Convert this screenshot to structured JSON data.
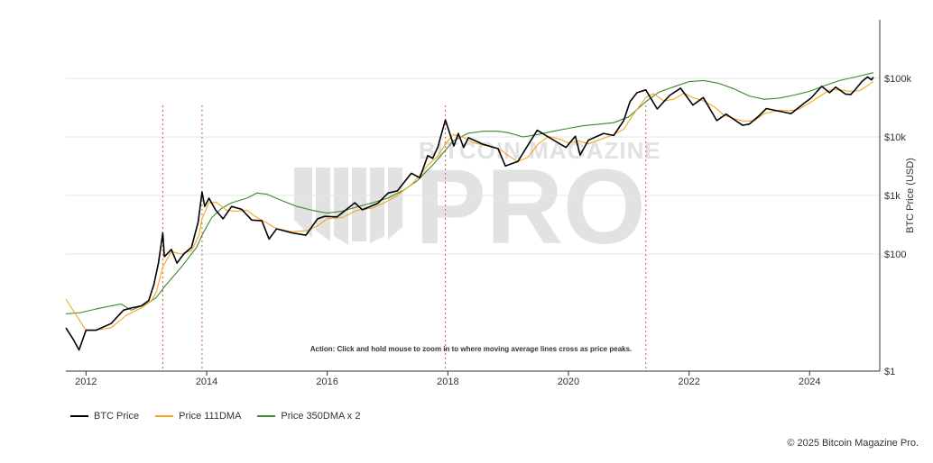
{
  "chart_data": {
    "type": "line",
    "xlabel": "",
    "ylabel": "BTC Price (USD)",
    "y_scale": "log",
    "x_range": [
      "2011-09-01",
      "2025-03-01"
    ],
    "ylim": [
      1,
      1000000
    ],
    "x_ticks": [
      "2012",
      "2014",
      "2016",
      "2018",
      "2020",
      "2022",
      "2024"
    ],
    "y_ticks": [
      {
        "value": 1,
        "label": "$1"
      },
      {
        "value": 100,
        "label": "$100"
      },
      {
        "value": 1000,
        "label": "$1k"
      },
      {
        "value": 10000,
        "label": "$10k"
      },
      {
        "value": 100000,
        "label": "$100k"
      }
    ],
    "grid": true,
    "annotation": "Action: Click and hold mouse to zoom in to where moving average lines cross as price peaks.",
    "peak_markers": [
      "2013-04-10",
      "2013-12-04",
      "2017-12-17",
      "2021-04-14"
    ],
    "series": [
      {
        "name": "BTC Price",
        "color": "#000000",
        "points": [
          [
            "2011-09-01",
            5.5
          ],
          [
            "2011-10-15",
            3.5
          ],
          [
            "2011-11-20",
            2.3
          ],
          [
            "2012-01-01",
            5.0
          ],
          [
            "2012-03-01",
            5.0
          ],
          [
            "2012-06-01",
            6.5
          ],
          [
            "2012-08-15",
            11
          ],
          [
            "2012-10-01",
            12
          ],
          [
            "2012-12-01",
            13
          ],
          [
            "2013-01-15",
            16
          ],
          [
            "2013-02-15",
            30
          ],
          [
            "2013-03-15",
            70
          ],
          [
            "2013-04-10",
            230
          ],
          [
            "2013-04-20",
            90
          ],
          [
            "2013-06-01",
            120
          ],
          [
            "2013-07-05",
            70
          ],
          [
            "2013-08-15",
            100
          ],
          [
            "2013-10-01",
            130
          ],
          [
            "2013-11-10",
            350
          ],
          [
            "2013-12-04",
            1150
          ],
          [
            "2013-12-20",
            650
          ],
          [
            "2014-01-15",
            900
          ],
          [
            "2014-02-25",
            560
          ],
          [
            "2014-04-10",
            400
          ],
          [
            "2014-06-01",
            650
          ],
          [
            "2014-08-01",
            580
          ],
          [
            "2014-10-01",
            380
          ],
          [
            "2014-12-01",
            370
          ],
          [
            "2015-01-14",
            180
          ],
          [
            "2015-03-01",
            270
          ],
          [
            "2015-06-01",
            230
          ],
          [
            "2015-08-25",
            210
          ],
          [
            "2015-11-04",
            400
          ],
          [
            "2015-12-15",
            440
          ],
          [
            "2016-03-01",
            430
          ],
          [
            "2016-06-16",
            750
          ],
          [
            "2016-08-01",
            570
          ],
          [
            "2016-11-01",
            730
          ],
          [
            "2017-01-04",
            1100
          ],
          [
            "2017-03-01",
            1200
          ],
          [
            "2017-05-25",
            2400
          ],
          [
            "2017-07-15",
            2000
          ],
          [
            "2017-09-01",
            4800
          ],
          [
            "2017-10-01",
            4300
          ],
          [
            "2017-11-01",
            6700
          ],
          [
            "2017-12-17",
            19500
          ],
          [
            "2018-02-06",
            7000
          ],
          [
            "2018-03-05",
            11500
          ],
          [
            "2018-04-06",
            6600
          ],
          [
            "2018-05-05",
            9700
          ],
          [
            "2018-08-01",
            7500
          ],
          [
            "2018-11-01",
            6300
          ],
          [
            "2018-12-15",
            3200
          ],
          [
            "2019-03-01",
            3800
          ],
          [
            "2019-06-26",
            13000
          ],
          [
            "2019-09-01",
            10000
          ],
          [
            "2019-12-17",
            6600
          ],
          [
            "2020-02-12",
            10300
          ],
          [
            "2020-03-12",
            4900
          ],
          [
            "2020-05-01",
            8800
          ],
          [
            "2020-08-01",
            11500
          ],
          [
            "2020-10-01",
            10600
          ],
          [
            "2020-12-01",
            19000
          ],
          [
            "2021-01-08",
            40000
          ],
          [
            "2021-02-20",
            57000
          ],
          [
            "2021-04-14",
            63500
          ],
          [
            "2021-06-22",
            30000
          ],
          [
            "2021-08-01",
            40000
          ],
          [
            "2021-09-05",
            51000
          ],
          [
            "2021-11-10",
            68000
          ],
          [
            "2022-01-24",
            35000
          ],
          [
            "2022-03-28",
            47000
          ],
          [
            "2022-06-18",
            19000
          ],
          [
            "2022-08-13",
            24500
          ],
          [
            "2022-11-21",
            15800
          ],
          [
            "2023-01-01",
            16600
          ],
          [
            "2023-03-01",
            23000
          ],
          [
            "2023-04-14",
            30500
          ],
          [
            "2023-09-11",
            25000
          ],
          [
            "2023-12-01",
            38000
          ],
          [
            "2024-01-11",
            46500
          ],
          [
            "2024-03-14",
            73000
          ],
          [
            "2024-05-01",
            57000
          ],
          [
            "2024-06-07",
            71000
          ],
          [
            "2024-08-05",
            54000
          ],
          [
            "2024-09-06",
            53000
          ],
          [
            "2024-10-01",
            63000
          ],
          [
            "2024-11-12",
            88000
          ],
          [
            "2024-12-17",
            106000
          ],
          [
            "2025-01-10",
            94000
          ],
          [
            "2025-01-21",
            105000
          ]
        ]
      },
      {
        "name": "Price 111DMA",
        "color": "#f5a623",
        "points": [
          [
            "2011-09-01",
            17
          ],
          [
            "2011-11-15",
            8
          ],
          [
            "2012-01-01",
            5
          ],
          [
            "2012-03-01",
            5.0
          ],
          [
            "2012-06-01",
            5.5
          ],
          [
            "2012-09-01",
            9
          ],
          [
            "2012-12-01",
            12
          ],
          [
            "2013-02-01",
            16
          ],
          [
            "2013-03-01",
            22
          ],
          [
            "2013-04-10",
            60
          ],
          [
            "2013-06-01",
            110
          ],
          [
            "2013-08-01",
            100
          ],
          [
            "2013-10-01",
            115
          ],
          [
            "2013-11-15",
            210
          ],
          [
            "2013-12-04",
            400
          ],
          [
            "2014-01-15",
            750
          ],
          [
            "2014-03-01",
            760
          ],
          [
            "2014-05-01",
            560
          ],
          [
            "2014-07-01",
            540
          ],
          [
            "2014-09-01",
            560
          ],
          [
            "2014-11-01",
            420
          ],
          [
            "2015-01-01",
            340
          ],
          [
            "2015-03-01",
            270
          ],
          [
            "2015-06-01",
            240
          ],
          [
            "2015-09-01",
            250
          ],
          [
            "2015-11-01",
            300
          ],
          [
            "2016-01-01",
            400
          ],
          [
            "2016-04-01",
            420
          ],
          [
            "2016-07-01",
            560
          ],
          [
            "2016-10-01",
            610
          ],
          [
            "2017-01-01",
            800
          ],
          [
            "2017-03-01",
            1000
          ],
          [
            "2017-06-01",
            1600
          ],
          [
            "2017-09-01",
            3300
          ],
          [
            "2017-11-01",
            4700
          ],
          [
            "2017-12-17",
            7500
          ],
          [
            "2018-02-01",
            11000
          ],
          [
            "2018-04-01",
            10000
          ],
          [
            "2018-06-01",
            8000
          ],
          [
            "2018-09-01",
            7000
          ],
          [
            "2018-11-15",
            6100
          ],
          [
            "2019-01-01",
            4800
          ],
          [
            "2019-03-01",
            3800
          ],
          [
            "2019-05-01",
            4500
          ],
          [
            "2019-07-01",
            7500
          ],
          [
            "2019-09-01",
            10200
          ],
          [
            "2019-11-01",
            9300
          ],
          [
            "2020-01-01",
            7900
          ],
          [
            "2020-03-01",
            8600
          ],
          [
            "2020-05-01",
            7600
          ],
          [
            "2020-07-01",
            8800
          ],
          [
            "2020-10-01",
            11000
          ],
          [
            "2020-12-01",
            13500
          ],
          [
            "2021-02-01",
            25000
          ],
          [
            "2021-04-14",
            47000
          ],
          [
            "2021-06-01",
            55000
          ],
          [
            "2021-08-01",
            41000
          ],
          [
            "2021-10-01",
            44000
          ],
          [
            "2021-12-01",
            56000
          ],
          [
            "2022-02-01",
            46000
          ],
          [
            "2022-04-01",
            41000
          ],
          [
            "2022-06-01",
            33000
          ],
          [
            "2022-08-01",
            23500
          ],
          [
            "2022-10-01",
            20500
          ],
          [
            "2022-12-01",
            18500
          ],
          [
            "2023-02-01",
            19000
          ],
          [
            "2023-04-01",
            25000
          ],
          [
            "2023-07-01",
            28500
          ],
          [
            "2023-09-01",
            28000
          ],
          [
            "2023-11-01",
            30000
          ],
          [
            "2024-01-01",
            38000
          ],
          [
            "2024-03-14",
            52000
          ],
          [
            "2024-05-01",
            63000
          ],
          [
            "2024-07-01",
            64000
          ],
          [
            "2024-09-01",
            60000
          ],
          [
            "2024-11-01",
            62000
          ],
          [
            "2024-12-17",
            75000
          ],
          [
            "2025-01-21",
            88000
          ]
        ]
      },
      {
        "name": "Price 350DMA x 2",
        "color": "#3a8a2a",
        "points": [
          [
            "2011-09-01",
            9.5
          ],
          [
            "2011-12-01",
            10
          ],
          [
            "2012-03-01",
            11.5
          ],
          [
            "2012-06-01",
            13
          ],
          [
            "2012-08-01",
            14
          ],
          [
            "2012-10-01",
            11
          ],
          [
            "2013-01-01",
            14
          ],
          [
            "2013-03-01",
            18
          ],
          [
            "2013-05-01",
            30
          ],
          [
            "2013-08-01",
            60
          ],
          [
            "2013-11-01",
            130
          ],
          [
            "2013-12-04",
            210
          ],
          [
            "2014-02-01",
            420
          ],
          [
            "2014-04-01",
            600
          ],
          [
            "2014-06-01",
            750
          ],
          [
            "2014-09-01",
            900
          ],
          [
            "2014-11-01",
            1100
          ],
          [
            "2015-01-01",
            1050
          ],
          [
            "2015-04-01",
            820
          ],
          [
            "2015-07-01",
            650
          ],
          [
            "2015-10-01",
            560
          ],
          [
            "2016-01-01",
            500
          ],
          [
            "2016-04-01",
            540
          ],
          [
            "2016-07-01",
            640
          ],
          [
            "2016-10-01",
            750
          ],
          [
            "2017-01-01",
            900
          ],
          [
            "2017-04-01",
            1200
          ],
          [
            "2017-07-01",
            1800
          ],
          [
            "2017-10-01",
            3300
          ],
          [
            "2017-12-17",
            5900
          ],
          [
            "2018-02-01",
            8500
          ],
          [
            "2018-05-01",
            11500
          ],
          [
            "2018-08-01",
            12500
          ],
          [
            "2018-11-01",
            12500
          ],
          [
            "2019-01-01",
            11800
          ],
          [
            "2019-04-01",
            10000
          ],
          [
            "2019-07-01",
            11000
          ],
          [
            "2019-10-01",
            12500
          ],
          [
            "2020-01-01",
            14000
          ],
          [
            "2020-04-01",
            15500
          ],
          [
            "2020-07-01",
            16500
          ],
          [
            "2020-10-01",
            17500
          ],
          [
            "2021-01-01",
            22000
          ],
          [
            "2021-04-14",
            40000
          ],
          [
            "2021-07-01",
            58000
          ],
          [
            "2021-10-01",
            72000
          ],
          [
            "2022-01-01",
            88000
          ],
          [
            "2022-04-01",
            92000
          ],
          [
            "2022-07-01",
            82000
          ],
          [
            "2022-10-01",
            66000
          ],
          [
            "2023-01-01",
            50000
          ],
          [
            "2023-04-01",
            44000
          ],
          [
            "2023-07-01",
            46000
          ],
          [
            "2023-10-01",
            52000
          ],
          [
            "2024-01-01",
            60000
          ],
          [
            "2024-04-01",
            75000
          ],
          [
            "2024-07-01",
            92000
          ],
          [
            "2024-10-01",
            105000
          ],
          [
            "2025-01-21",
            125000
          ]
        ]
      }
    ]
  },
  "legend": [
    {
      "label": "BTC Price",
      "color": "#000000"
    },
    {
      "label": "Price 111DMA",
      "color": "#f5a623"
    },
    {
      "label": "Price 350DMA x 2",
      "color": "#3a8a2a"
    }
  ],
  "watermark": {
    "line1": "BITCOIN MAGAZINE",
    "line2": "PRO"
  },
  "credit": "© 2025 Bitcoin Magazine Pro."
}
